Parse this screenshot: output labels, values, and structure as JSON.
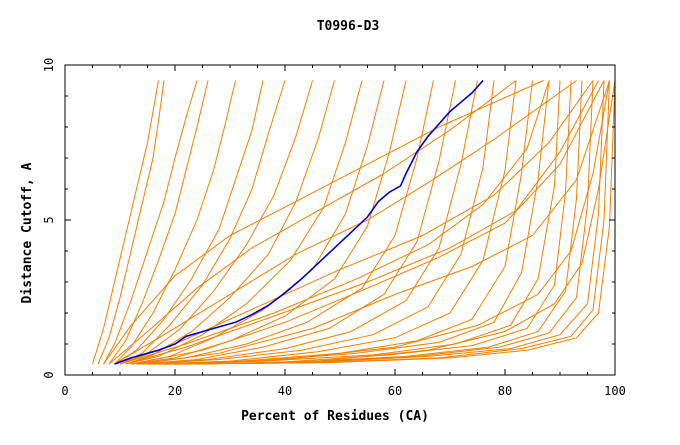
{
  "chart_data": {
    "type": "line",
    "title": "T0996-D3",
    "xlabel": "Percent of Residues (CA)",
    "ylabel": "Distance Cutoff, A",
    "xlim": [
      0,
      100
    ],
    "ylim": [
      0,
      10
    ],
    "x_ticks": [
      "0",
      "20",
      "40",
      "60",
      "80",
      "100"
    ],
    "y_ticks": [
      "0",
      "5",
      "10"
    ],
    "grid": false,
    "legend": "none",
    "colors": {
      "background_curves": "#f08000",
      "highlight_curve": "#0000cc",
      "axes": "#000000"
    },
    "highlight": {
      "x": [
        9,
        12,
        17,
        20,
        22,
        25,
        28,
        31,
        34,
        37,
        40,
        43,
        46,
        49,
        52,
        55,
        57,
        59,
        61,
        62,
        64,
        66,
        68,
        70,
        72,
        74,
        76
      ],
      "y": [
        0.35,
        0.55,
        0.8,
        1.0,
        1.25,
        1.4,
        1.55,
        1.7,
        1.95,
        2.25,
        2.65,
        3.1,
        3.6,
        4.1,
        4.6,
        5.1,
        5.6,
        5.9,
        6.1,
        6.5,
        7.2,
        7.7,
        8.1,
        8.5,
        8.8,
        9.1,
        9.5
      ]
    },
    "series": [
      {
        "x": [
          5,
          7,
          9,
          11,
          13,
          15,
          16,
          17
        ],
        "y": [
          0.35,
          1.5,
          3.0,
          4.5,
          6.0,
          7.5,
          8.5,
          9.5
        ]
      },
      {
        "x": [
          6,
          8,
          10,
          12,
          14,
          16,
          17,
          18
        ],
        "y": [
          0.35,
          1.2,
          2.5,
          4.0,
          5.5,
          7.0,
          8.2,
          9.5
        ]
      },
      {
        "x": [
          7,
          9,
          12,
          15,
          18,
          20,
          22,
          24
        ],
        "y": [
          0.35,
          1.0,
          2.4,
          4.0,
          5.6,
          7.0,
          8.3,
          9.5
        ]
      },
      {
        "x": [
          8,
          11,
          14,
          17,
          20,
          22,
          24,
          26
        ],
        "y": [
          0.35,
          1.1,
          2.3,
          3.7,
          5.2,
          6.6,
          8.0,
          9.5
        ]
      },
      {
        "x": [
          9,
          12,
          16,
          20,
          24,
          27,
          29,
          31
        ],
        "y": [
          0.35,
          0.9,
          2.0,
          3.4,
          5.0,
          6.6,
          8.0,
          9.5
        ]
      },
      {
        "x": [
          9,
          13,
          18,
          23,
          28,
          31,
          34,
          36
        ],
        "y": [
          0.35,
          0.8,
          1.8,
          3.1,
          4.7,
          6.3,
          7.9,
          9.5
        ]
      },
      {
        "x": [
          10,
          14,
          19,
          25,
          30,
          34,
          37,
          40
        ],
        "y": [
          0.35,
          0.7,
          1.6,
          2.9,
          4.4,
          6.0,
          7.8,
          9.5
        ]
      },
      {
        "x": [
          10,
          15,
          21,
          27,
          33,
          38,
          42,
          45
        ],
        "y": [
          0.35,
          0.7,
          1.5,
          2.7,
          4.2,
          5.8,
          7.7,
          9.5
        ]
      },
      {
        "x": [
          11,
          16,
          23,
          30,
          37,
          42,
          46,
          49
        ],
        "y": [
          0.35,
          0.65,
          1.4,
          2.5,
          3.9,
          5.6,
          7.6,
          9.5
        ]
      },
      {
        "x": [
          11,
          17,
          25,
          33,
          41,
          47,
          51,
          54
        ],
        "y": [
          0.35,
          0.6,
          1.3,
          2.3,
          3.7,
          5.4,
          7.5,
          9.5
        ]
      },
      {
        "x": [
          12,
          19,
          27,
          36,
          45,
          51,
          55,
          58
        ],
        "y": [
          0.35,
          0.6,
          1.2,
          2.1,
          3.4,
          5.2,
          7.4,
          9.5
        ]
      },
      {
        "x": [
          12,
          20,
          30,
          40,
          49,
          55,
          59,
          62
        ],
        "y": [
          0.35,
          0.55,
          1.1,
          1.9,
          3.1,
          4.8,
          7.2,
          9.5
        ]
      },
      {
        "x": [
          13,
          22,
          33,
          44,
          54,
          60,
          64,
          67
        ],
        "y": [
          0.35,
          0.55,
          1.0,
          1.7,
          2.8,
          4.5,
          7.0,
          9.5
        ]
      },
      {
        "x": [
          13,
          24,
          36,
          48,
          58,
          64,
          68,
          71
        ],
        "y": [
          0.35,
          0.5,
          0.9,
          1.5,
          2.6,
          4.3,
          6.9,
          9.5
        ]
      },
      {
        "x": [
          14,
          26,
          40,
          52,
          62,
          68,
          72,
          75
        ],
        "y": [
          0.35,
          0.5,
          0.85,
          1.4,
          2.4,
          4.1,
          6.8,
          9.5
        ]
      },
      {
        "x": [
          14,
          28,
          43,
          56,
          66,
          72,
          76,
          78
        ],
        "y": [
          0.35,
          0.5,
          0.8,
          1.3,
          2.2,
          3.9,
          6.7,
          9.5
        ]
      },
      {
        "x": [
          15,
          30,
          46,
          60,
          70,
          76,
          80,
          82
        ],
        "y": [
          0.35,
          0.45,
          0.75,
          1.2,
          2.0,
          3.7,
          6.6,
          9.5
        ]
      },
      {
        "x": [
          15,
          32,
          50,
          64,
          74,
          80,
          83,
          85
        ],
        "y": [
          0.35,
          0.45,
          0.7,
          1.1,
          1.8,
          3.5,
          6.5,
          9.5
        ]
      },
      {
        "x": [
          16,
          34,
          53,
          68,
          78,
          83,
          86,
          88
        ],
        "y": [
          0.35,
          0.45,
          0.7,
          1.05,
          1.7,
          3.3,
          6.3,
          9.5
        ]
      },
      {
        "x": [
          16,
          36,
          56,
          71,
          81,
          86,
          89,
          90
        ],
        "y": [
          0.35,
          0.45,
          0.65,
          1.0,
          1.6,
          3.1,
          6.1,
          9.5
        ]
      },
      {
        "x": [
          17,
          38,
          59,
          74,
          84,
          89,
          91,
          92
        ],
        "y": [
          0.35,
          0.4,
          0.65,
          0.95,
          1.5,
          2.9,
          5.9,
          9.5
        ]
      },
      {
        "x": [
          17,
          40,
          62,
          77,
          86,
          91,
          93,
          94
        ],
        "y": [
          0.35,
          0.4,
          0.6,
          0.9,
          1.4,
          2.7,
          5.7,
          9.5
        ]
      },
      {
        "x": [
          18,
          42,
          64,
          79,
          88,
          93,
          95,
          96
        ],
        "y": [
          0.35,
          0.4,
          0.6,
          0.9,
          1.35,
          2.5,
          5.5,
          9.5
        ]
      },
      {
        "x": [
          18,
          44,
          66,
          81,
          90,
          95,
          97,
          98
        ],
        "y": [
          0.35,
          0.4,
          0.6,
          0.85,
          1.3,
          2.3,
          5.2,
          9.5
        ]
      },
      {
        "x": [
          19,
          46,
          68,
          83,
          92,
          96,
          98,
          99
        ],
        "y": [
          0.35,
          0.4,
          0.55,
          0.85,
          1.25,
          2.1,
          5.0,
          9.5
        ]
      },
      {
        "x": [
          20,
          48,
          70,
          84,
          93,
          97,
          99,
          100
        ],
        "y": [
          0.35,
          0.4,
          0.55,
          0.8,
          1.2,
          2.0,
          4.8,
          9.5
        ]
      },
      {
        "x": [
          22,
          40,
          60,
          75,
          86,
          92,
          96,
          99
        ],
        "y": [
          0.35,
          0.5,
          0.9,
          1.6,
          2.6,
          4.0,
          6.5,
          9.5
        ]
      },
      {
        "x": [
          24,
          46,
          66,
          80,
          89,
          94,
          97,
          100
        ],
        "y": [
          0.35,
          0.45,
          0.8,
          1.4,
          2.3,
          3.6,
          6.0,
          9.5
        ]
      },
      {
        "x": [
          10,
          20,
          35,
          50,
          65,
          78,
          88,
          96
        ],
        "y": [
          0.35,
          1.0,
          2.2,
          3.4,
          4.5,
          5.8,
          7.5,
          9.5
        ]
      },
      {
        "x": [
          11,
          22,
          38,
          55,
          70,
          82,
          90,
          97
        ],
        "y": [
          0.35,
          0.9,
          1.9,
          3.0,
          4.1,
          5.3,
          7.2,
          9.5
        ]
      },
      {
        "x": [
          8,
          15,
          24,
          34,
          46,
          58,
          70,
          82
        ],
        "y": [
          0.35,
          1.4,
          2.8,
          4.1,
          5.3,
          6.5,
          7.9,
          9.5
        ]
      },
      {
        "x": [
          7,
          12,
          20,
          30,
          42,
          55,
          68,
          87
        ],
        "y": [
          0.35,
          1.6,
          3.2,
          4.5,
          5.6,
          6.8,
          8.0,
          9.5
        ]
      },
      {
        "x": [
          12,
          25,
          40,
          55,
          68,
          80,
          90,
          98
        ],
        "y": [
          0.35,
          0.8,
          1.7,
          2.8,
          3.8,
          4.9,
          6.8,
          9.5
        ]
      },
      {
        "x": [
          9,
          18,
          30,
          42,
          55,
          66,
          78,
          93
        ],
        "y": [
          0.35,
          1.3,
          2.6,
          3.9,
          5.0,
          6.2,
          7.6,
          9.5
        ]
      },
      {
        "x": [
          13,
          28,
          45,
          60,
          74,
          85,
          93,
          99
        ],
        "y": [
          0.35,
          0.7,
          1.5,
          2.6,
          3.5,
          4.5,
          6.3,
          9.5
        ]
      },
      {
        "x": [
          10,
          22,
          38,
          53,
          66,
          76,
          84,
          88
        ],
        "y": [
          0.35,
          1.0,
          2.0,
          3.1,
          4.2,
          5.5,
          7.3,
          9.5
        ]
      }
    ]
  }
}
